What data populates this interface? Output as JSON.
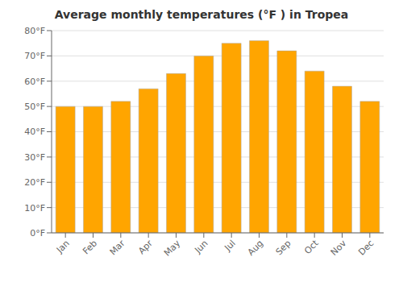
{
  "chart_data": {
    "type": "bar",
    "title": "Average monthly temperatures (°F ) in Tropea",
    "categories": [
      "Jan",
      "Feb",
      "Mar",
      "Apr",
      "May",
      "Jun",
      "Jul",
      "Aug",
      "Sep",
      "Oct",
      "Nov",
      "Dec"
    ],
    "values": [
      50,
      50,
      52,
      57,
      63,
      70,
      75,
      76,
      72,
      64,
      58,
      52
    ],
    "color": "#FFA500",
    "ylim": [
      0,
      80
    ],
    "yticks": [
      {
        "value": 0,
        "label": "0°F"
      },
      {
        "value": 10,
        "label": "10°F"
      },
      {
        "value": 20,
        "label": "20°F"
      },
      {
        "value": 30,
        "label": "30°F"
      },
      {
        "value": 40,
        "label": "40°F"
      },
      {
        "value": 50,
        "label": "50°F"
      },
      {
        "value": 60,
        "label": "60°F"
      },
      {
        "value": 70,
        "label": "70°F"
      },
      {
        "value": 80,
        "label": "80°F"
      }
    ],
    "grid": true
  }
}
